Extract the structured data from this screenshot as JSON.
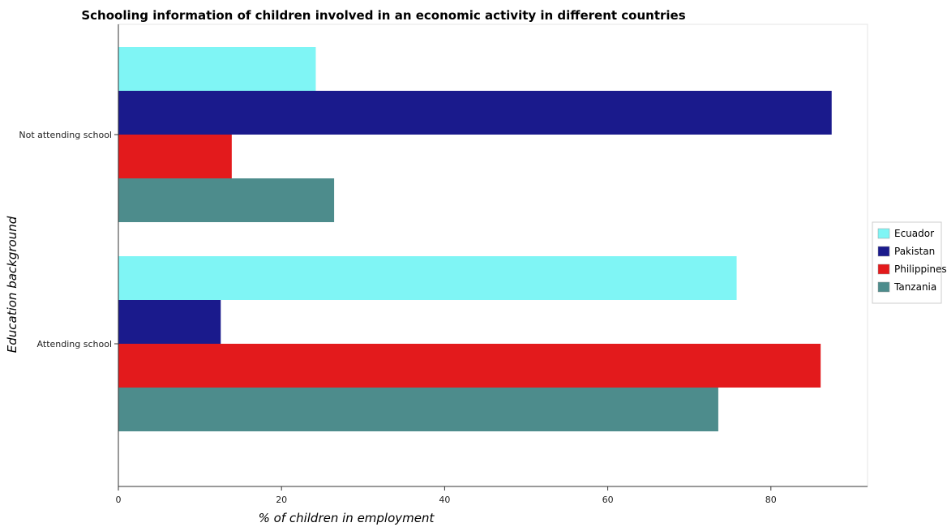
{
  "chart_data": {
    "type": "bar",
    "orientation": "horizontal",
    "title": "Schooling information of children involved in an economic activity in different countries",
    "xlabel": "% of children in employment",
    "ylabel": "Education background",
    "categories": [
      "Not attending school",
      "Attending school"
    ],
    "series": [
      {
        "name": "Ecuador",
        "color": "#7ff5f5",
        "values": [
          24.2,
          75.8
        ]
      },
      {
        "name": "Pakistan",
        "color": "#1a1a8c",
        "values": [
          87.45,
          12.55
        ]
      },
      {
        "name": "Philippines",
        "color": "#e31a1c",
        "values": [
          13.9,
          86.1
        ]
      },
      {
        "name": "Tanzania",
        "color": "#4d8c8c",
        "values": [
          26.45,
          73.55
        ]
      }
    ],
    "xlim": [
      0,
      92
    ],
    "xticks": [
      0,
      20,
      40,
      60,
      80
    ],
    "grid": false,
    "legend_position": "right"
  }
}
